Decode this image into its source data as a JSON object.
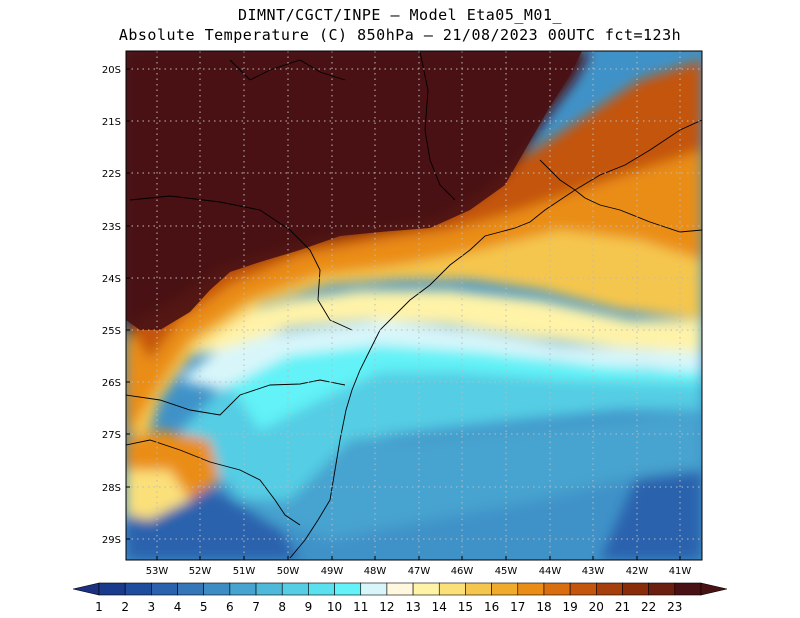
{
  "header": {
    "line1": "DIMNT/CGCT/INPE –  Model Eta05_M01_",
    "line2": "Absolute Temperature (C) 850hPa –  21/08/2023 00UTC fct=123h"
  },
  "map": {
    "lat_labels": [
      "20S",
      "21S",
      "22S",
      "23S",
      "24S",
      "25S",
      "26S",
      "27S",
      "28S",
      "29S"
    ],
    "lon_labels": [
      "53W",
      "52W",
      "51W",
      "50W",
      "49W",
      "48W",
      "47W",
      "46W",
      "45W",
      "44W",
      "43W",
      "42W",
      "41W"
    ]
  },
  "colorbar": {
    "labels": [
      "1",
      "2",
      "3",
      "4",
      "5",
      "6",
      "7",
      "8",
      "9",
      "10",
      "11",
      "12",
      "13",
      "14",
      "15",
      "16",
      "17",
      "18",
      "19",
      "20",
      "21",
      "22",
      "23"
    ],
    "colors": [
      "#1a3a8c",
      "#1f4d9e",
      "#2a62ad",
      "#3576b9",
      "#3d8cc4",
      "#47a3cf",
      "#4fb9da",
      "#55cde4",
      "#5ae0ee",
      "#62f2f7",
      "#d8f6fa",
      "#fff8df",
      "#fff3a8",
      "#fbe07a",
      "#f5c64e",
      "#f0ab2c",
      "#ea8d16",
      "#d96e10",
      "#c4550c",
      "#a63f0b",
      "#8a2b0a",
      "#6a1f10",
      "#4a1114"
    ],
    "low_color": "#1c2f80",
    "high_color": "#4a1114"
  }
}
